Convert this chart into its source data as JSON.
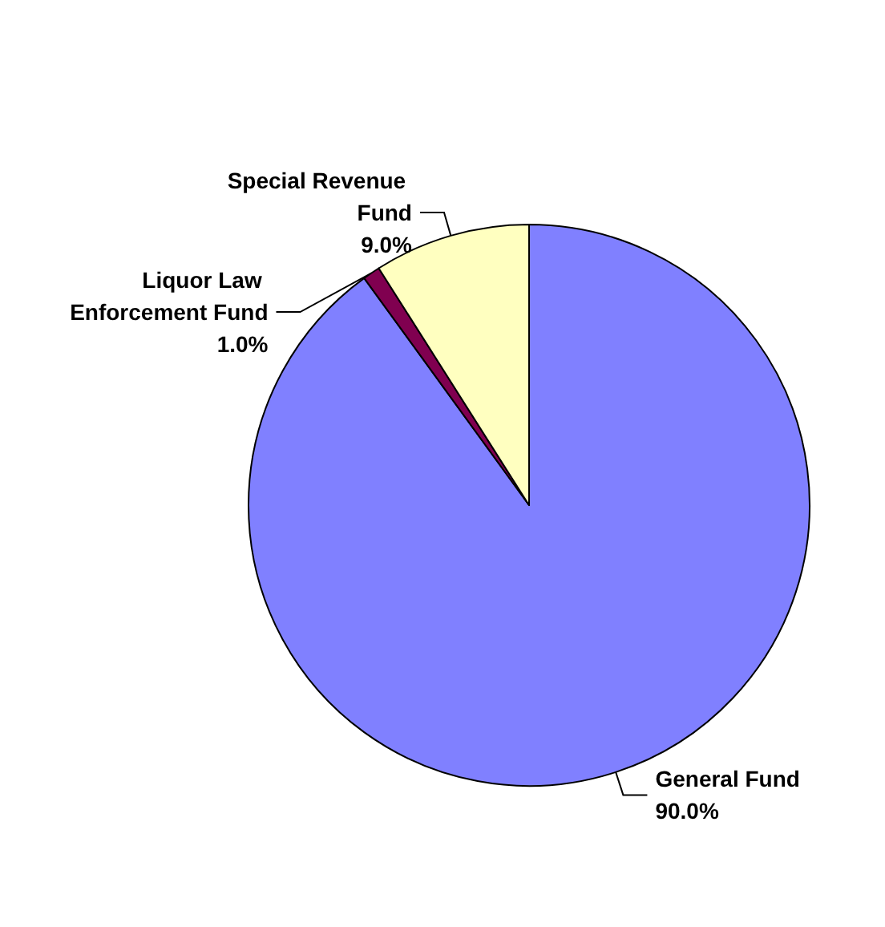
{
  "chart_data": {
    "type": "pie",
    "categories": [
      "General Fund",
      "Liquor Law Enforcement Fund",
      "Special Revenue Fund"
    ],
    "values": [
      90,
      1,
      9
    ],
    "colors": [
      "#8080ff",
      "#800050",
      "#ffffc0"
    ],
    "value_labels": [
      "90.0%",
      "1.0%",
      "9.0%"
    ],
    "legend": false
  }
}
